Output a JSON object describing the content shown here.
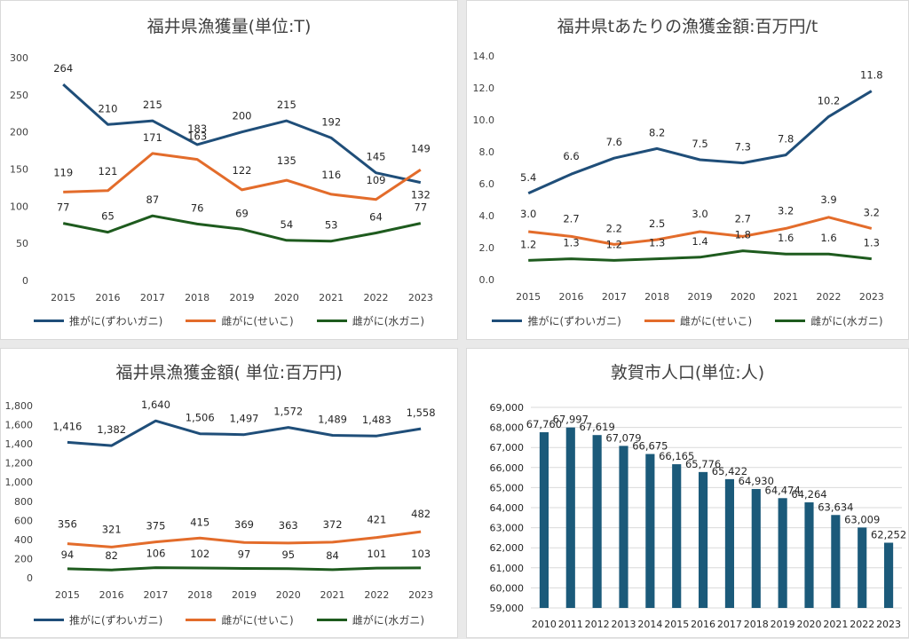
{
  "chart_data": [
    {
      "type": "line",
      "title": "福井県漁獲量(単位:T)",
      "categories": [
        "2015",
        "2016",
        "2017",
        "2018",
        "2019",
        "2020",
        "2021",
        "2022",
        "2023"
      ],
      "yticks": [
        "0",
        "50",
        "100",
        "150",
        "200",
        "250",
        "300"
      ],
      "ylim": [
        0,
        300
      ],
      "grid": false,
      "legend": "bottom",
      "series": [
        {
          "name": "推がに(ずわいガニ)",
          "color": "#1f4e79",
          "values": [
            264,
            210,
            215,
            183,
            200,
            215,
            192,
            145,
            132
          ],
          "labels": [
            "264",
            "210",
            "215",
            "183",
            "200",
            "215",
            "192",
            "145",
            "132"
          ]
        },
        {
          "name": "雌がに(せいこ)",
          "color": "#e36c2b",
          "values": [
            119,
            121,
            171,
            163,
            122,
            135,
            116,
            109,
            149
          ],
          "labels": [
            "119",
            "121",
            "171",
            "163",
            "122",
            "135",
            "116",
            "109",
            "149"
          ]
        },
        {
          "name": "雌がに(水ガニ)",
          "color": "#1e5b1e",
          "values": [
            77,
            65,
            87,
            76,
            69,
            54,
            53,
            64,
            77
          ],
          "labels": [
            "77",
            "65",
            "87",
            "76",
            "69",
            "54",
            "53",
            "64",
            "77"
          ]
        }
      ]
    },
    {
      "type": "line",
      "title": "福井県tあたりの漁獲金額:百万円/t",
      "categories": [
        "2015",
        "2016",
        "2017",
        "2018",
        "2019",
        "2020",
        "2021",
        "2022",
        "2023"
      ],
      "yticks": [
        "0.0",
        "2.0",
        "4.0",
        "6.0",
        "8.0",
        "10.0",
        "12.0",
        "14.0"
      ],
      "ylim": [
        0,
        14
      ],
      "grid": false,
      "legend": "bottom",
      "series": [
        {
          "name": "推がに(ずわいガニ)",
          "color": "#1f4e79",
          "values": [
            5.4,
            6.6,
            7.6,
            8.2,
            7.5,
            7.3,
            7.8,
            10.2,
            11.8
          ],
          "labels": [
            "5.4",
            "6.6",
            "7.6",
            "8.2",
            "7.5",
            "7.3",
            "7.8",
            "10.2",
            "11.8"
          ]
        },
        {
          "name": "雌がに(せいこ)",
          "color": "#e36c2b",
          "values": [
            3.0,
            2.7,
            2.2,
            2.5,
            3.0,
            2.7,
            3.2,
            3.9,
            3.2
          ],
          "labels": [
            "3.0",
            "2.7",
            "2.2",
            "2.5",
            "3.0",
            "2.7",
            "3.2",
            "3.9",
            "3.2"
          ]
        },
        {
          "name": "雌がに(水ガニ)",
          "color": "#1e5b1e",
          "values": [
            1.2,
            1.3,
            1.2,
            1.3,
            1.4,
            1.8,
            1.6,
            1.6,
            1.3
          ],
          "labels": [
            "1.2",
            "1.3",
            "1.2",
            "1.3",
            "1.4",
            "1.8",
            "1.6",
            "1.6",
            "1.3"
          ]
        }
      ]
    },
    {
      "type": "line",
      "title": "福井県漁獲金額( 単位:百万円)",
      "categories": [
        "2015",
        "2016",
        "2017",
        "2018",
        "2019",
        "2020",
        "2021",
        "2022",
        "2023"
      ],
      "yticks": [
        "0",
        "200",
        "400",
        "600",
        "800",
        "1,000",
        "1,200",
        "1,400",
        "1,600",
        "1,800"
      ],
      "ylim": [
        0,
        1800
      ],
      "grid": false,
      "legend": "bottom",
      "series": [
        {
          "name": "推がに(ずわいガニ)",
          "color": "#1f4e79",
          "values": [
            1416,
            1382,
            1640,
            1506,
            1497,
            1572,
            1489,
            1483,
            1558
          ],
          "labels": [
            "1,416",
            "1,382",
            "1,640",
            "1,506",
            "1,497",
            "1,572",
            "1,489",
            "1,483",
            "1,558"
          ]
        },
        {
          "name": "雌がに(せいこ)",
          "color": "#e36c2b",
          "values": [
            356,
            321,
            375,
            415,
            369,
            363,
            372,
            421,
            482
          ],
          "labels": [
            "356",
            "321",
            "375",
            "415",
            "369",
            "363",
            "372",
            "421",
            "482"
          ]
        },
        {
          "name": "雌がに(水ガニ)",
          "color": "#1e5b1e",
          "values": [
            94,
            82,
            106,
            102,
            97,
            95,
            84,
            101,
            103
          ],
          "labels": [
            "94",
            "82",
            "106",
            "102",
            "97",
            "95",
            "84",
            "101",
            "103"
          ]
        }
      ]
    },
    {
      "type": "bar",
      "title": "敦賀市人口(単位:人)",
      "categories": [
        "2010",
        "2011",
        "2012",
        "2013",
        "2014",
        "2015",
        "2016",
        "2017",
        "2018",
        "2019",
        "2020",
        "2021",
        "2022",
        "2023"
      ],
      "yticks": [
        "59,000",
        "60,000",
        "61,000",
        "62,000",
        "63,000",
        "64,000",
        "65,000",
        "66,000",
        "67,000",
        "68,000",
        "69,000"
      ],
      "ylim": [
        59000,
        69000
      ],
      "grid": true,
      "legend": "none",
      "series": [
        {
          "name": "",
          "color": "#1b5a7a",
          "values": [
            67760,
            67997,
            67619,
            67079,
            66675,
            66165,
            65776,
            65422,
            64930,
            64474,
            64264,
            63634,
            63009,
            62252
          ],
          "labels": [
            "67,760",
            "67,997",
            "67,619",
            "67,079",
            "66,675",
            "66,165",
            "65,776",
            "65,422",
            "64,930",
            "64,474",
            "64,264",
            "63,634",
            "63,009",
            "62,252"
          ]
        }
      ]
    }
  ]
}
